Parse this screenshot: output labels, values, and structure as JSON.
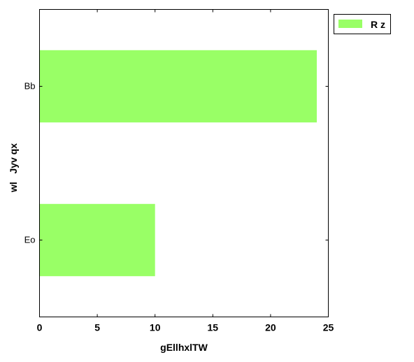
{
  "chart_data": {
    "type": "bar",
    "orientation": "horizontal",
    "categories": [
      "Eo",
      "Bb"
    ],
    "series": [
      {
        "name": "R z",
        "values": [
          10,
          24
        ],
        "color": "#99ff66"
      }
    ],
    "xlabel": "gEllhxlTW",
    "ylabel": "wl   Jyv qx",
    "xlim": [
      0,
      25
    ],
    "xticks": [
      0,
      5,
      10,
      15,
      20,
      25
    ],
    "xtick_labels": [
      "0",
      "5",
      "10",
      "15",
      "20",
      "25"
    ],
    "grid": false,
    "legend": "top-right (outside plot)"
  }
}
